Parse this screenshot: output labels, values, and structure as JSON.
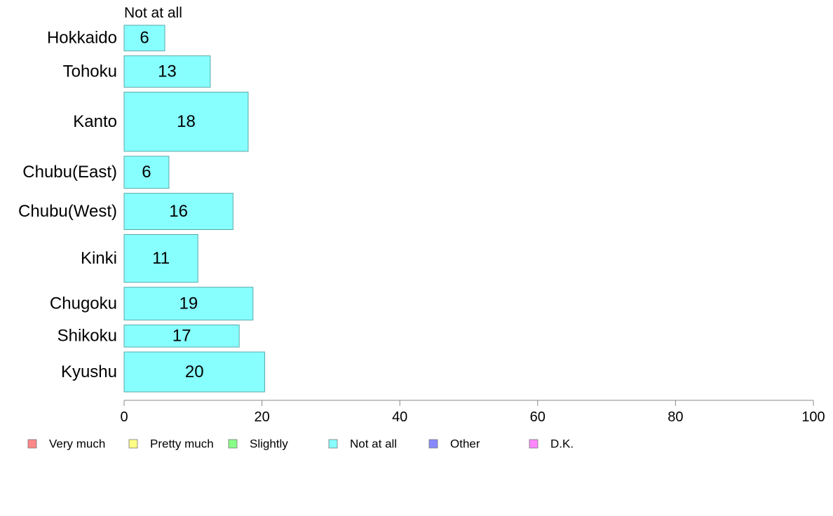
{
  "chart_data": {
    "type": "bar",
    "orientation": "horizontal",
    "series_title": "Not at all",
    "categories": [
      "Hokkaido",
      "Tohoku",
      "Kanto",
      "Chubu(East)",
      "Chubu(West)",
      "Kinki",
      "Chugoku",
      "Shikoku",
      "Kyushu"
    ],
    "values": [
      6,
      13,
      18,
      6,
      16,
      11,
      19,
      17,
      20
    ],
    "bar_lengths": [
      5.9,
      12.5,
      18.0,
      6.5,
      15.8,
      10.7,
      18.7,
      16.7,
      20.4
    ],
    "bar_thickness_weights": [
      36,
      44,
      83,
      45,
      51,
      67,
      46,
      31,
      56
    ],
    "xlim": [
      0,
      100
    ],
    "xticks": [
      0,
      20,
      40,
      60,
      80,
      100
    ],
    "grid": false,
    "legend_position": "bottom",
    "legend": [
      {
        "label": "Very much",
        "color": "#ff8888"
      },
      {
        "label": "Pretty much",
        "color": "#ffff88"
      },
      {
        "label": "Slightly",
        "color": "#88ff88"
      },
      {
        "label": "Not at all",
        "color": "#88ffff"
      },
      {
        "label": "Other",
        "color": "#8888ff"
      },
      {
        "label": "D.K.",
        "color": "#ff88ff"
      }
    ],
    "bar_color": "#88ffff",
    "bar_stroke": "#5aa9a9"
  }
}
